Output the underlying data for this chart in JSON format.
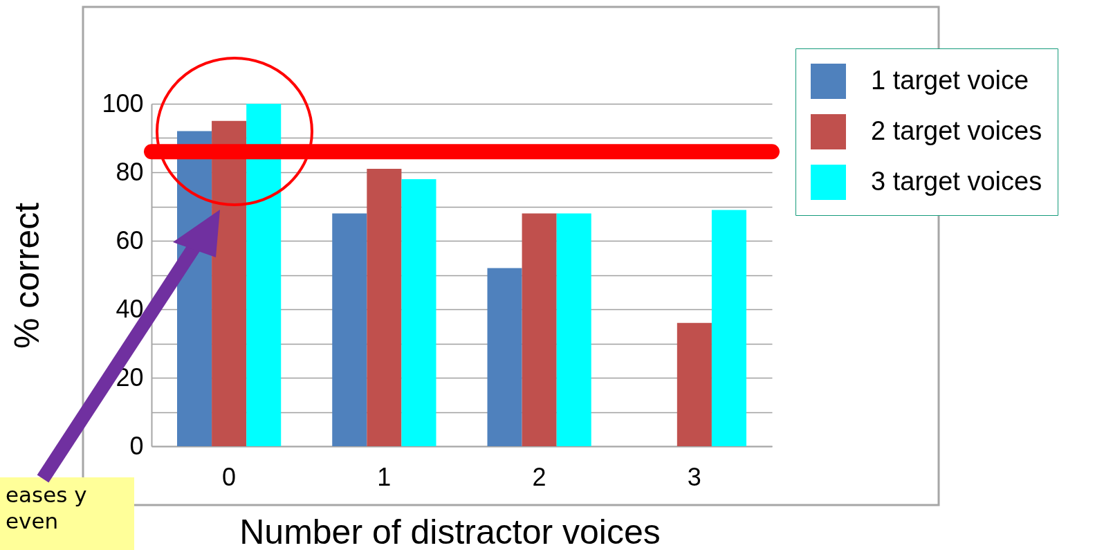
{
  "chart_data": {
    "type": "bar",
    "xlabel": "Number of distractor voices",
    "ylabel": "% correct",
    "categories": [
      "0",
      "1",
      "2",
      "3"
    ],
    "series": [
      {
        "name": "1 target voice",
        "color": "#4f81bd",
        "values": [
          92,
          68,
          52,
          null
        ]
      },
      {
        "name": "2 target voices",
        "color": "#c0504d",
        "values": [
          95,
          81,
          68,
          36
        ]
      },
      {
        "name": "3 target voices",
        "color": "#00ffff",
        "values": [
          100,
          78,
          68,
          69
        ]
      }
    ],
    "ylim": [
      0,
      100
    ],
    "yticks": [
      0,
      {
        "value": 10,
        "label": null
      },
      20,
      {
        "value": 30,
        "label": null
      },
      40,
      {
        "value": 50,
        "label": null
      },
      60,
      {
        "value": 70,
        "label": null
      },
      80,
      {
        "value": 90,
        "label": null
      },
      100
    ],
    "grid": "y",
    "legend": "top right",
    "ref_lines": [
      {
        "axis": "y",
        "value": 86,
        "color": "#ff0000"
      }
    ],
    "annotations": [
      "eases y even"
    ]
  }
}
